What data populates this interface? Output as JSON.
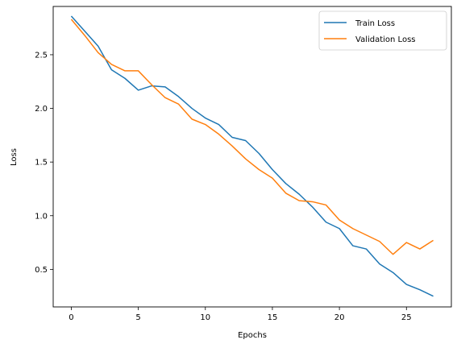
{
  "chart_data": {
    "type": "line",
    "title": "",
    "xlabel": "Epochs",
    "ylabel": "Loss",
    "xlim": [
      -1.35,
      28.35
    ],
    "ylim": [
      0.15,
      2.95
    ],
    "xticks": [
      0,
      5,
      10,
      15,
      20,
      25
    ],
    "xtick_labels": [
      "0",
      "5",
      "10",
      "15",
      "20",
      "25"
    ],
    "yticks": [
      0.5,
      1.0,
      1.5,
      2.0,
      2.5
    ],
    "ytick_labels": [
      "0.5",
      "1.0",
      "1.5",
      "2.0",
      "2.5"
    ],
    "grid": false,
    "legend_position": "top-right",
    "x": [
      0,
      1,
      2,
      3,
      4,
      5,
      6,
      7,
      8,
      9,
      10,
      11,
      12,
      13,
      14,
      15,
      16,
      17,
      18,
      19,
      20,
      21,
      22,
      23,
      24,
      25,
      26,
      27
    ],
    "series": [
      {
        "name": "Train Loss",
        "color": "#1f77b4",
        "values": [
          2.86,
          2.72,
          2.58,
          2.36,
          2.28,
          2.17,
          2.21,
          2.2,
          2.11,
          2.0,
          1.91,
          1.85,
          1.73,
          1.7,
          1.58,
          1.43,
          1.3,
          1.2,
          1.08,
          0.94,
          0.88,
          0.72,
          0.69,
          0.55,
          0.47,
          0.36,
          0.31,
          0.25
        ]
      },
      {
        "name": "Validation Loss",
        "color": "#ff7f0e",
        "values": [
          2.83,
          2.68,
          2.52,
          2.41,
          2.35,
          2.35,
          2.22,
          2.1,
          2.04,
          1.9,
          1.85,
          1.76,
          1.65,
          1.53,
          1.43,
          1.35,
          1.21,
          1.14,
          1.13,
          1.1,
          0.96,
          0.88,
          0.82,
          0.76,
          0.64,
          0.75,
          0.69,
          0.77
        ]
      }
    ]
  }
}
